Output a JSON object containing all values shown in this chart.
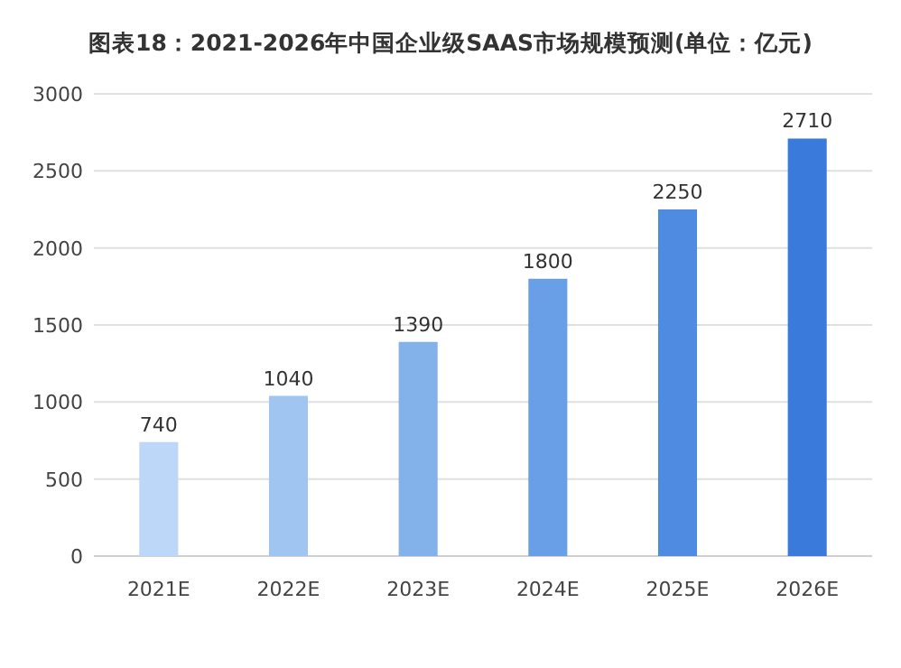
{
  "chart_data": {
    "type": "bar",
    "title": "图表18：2021-2026年中国企业级SAAS市场规模预测(单位：亿元)",
    "categories": [
      "2021E",
      "2022E",
      "2023E",
      "2024E",
      "2025E",
      "2026E"
    ],
    "values": [
      740,
      1040,
      1390,
      1800,
      2250,
      2710
    ],
    "colors": [
      "#bcd7f7",
      "#a0c5f1",
      "#83b2eb",
      "#689fe6",
      "#4f8ce1",
      "#3a7adb"
    ],
    "ylim": [
      0,
      3000
    ],
    "yticks": [
      0,
      500,
      1000,
      1500,
      2000,
      2500,
      3000
    ],
    "grid": "y",
    "data_labels": true
  }
}
